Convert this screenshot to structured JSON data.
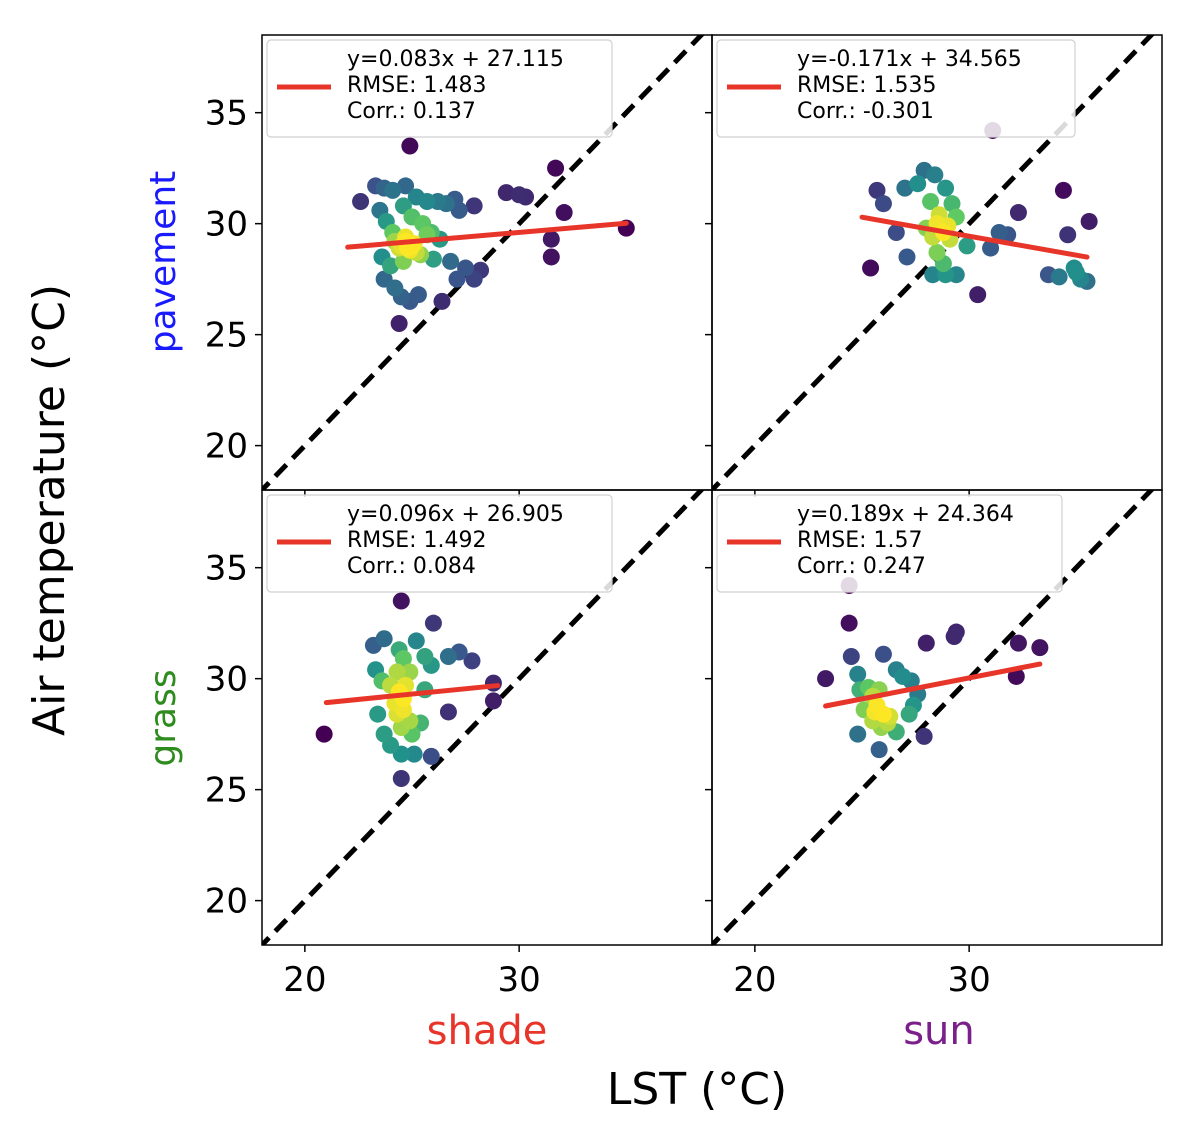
{
  "figure": {
    "xlabel": "LST (°C)",
    "ylabel": "Air temperature (°C)",
    "columns": [
      {
        "label": "shade",
        "color": "#e8352a"
      },
      {
        "label": "sun",
        "color": "#7b1f8a"
      }
    ],
    "rows": [
      {
        "label": "pavement",
        "color": "#1a1aff"
      },
      {
        "label": "grass",
        "color": "#2e8b1e"
      }
    ],
    "fit_line_color": "#e8352a",
    "one_to_one_color": "#000000"
  },
  "chart_data": [
    {
      "type": "scatter",
      "row": "pavement",
      "column": "shade",
      "xlim": [
        18,
        39
      ],
      "ylim": [
        18,
        38.5
      ],
      "xticks": [
        20,
        30
      ],
      "yticks": [
        20,
        25,
        30,
        35
      ],
      "fit": {
        "slope": 0.083,
        "intercept": 27.115,
        "x_range": [
          22,
          35
        ]
      },
      "legend": {
        "line1": "y=0.083x + 27.115",
        "line2": "RMSE: 1.483",
        "line3": "Corr.: 0.137"
      },
      "points": [
        [
          24.9,
          33.5
        ],
        [
          22.6,
          31.0
        ],
        [
          23.3,
          31.7
        ],
        [
          23.7,
          31.6
        ],
        [
          24.1,
          31.5
        ],
        [
          24.7,
          31.7
        ],
        [
          25.2,
          31.2
        ],
        [
          25.7,
          31.0
        ],
        [
          26.2,
          31.0
        ],
        [
          26.6,
          30.9
        ],
        [
          27.0,
          31.1
        ],
        [
          27.2,
          30.6
        ],
        [
          27.9,
          30.8
        ],
        [
          29.4,
          31.4
        ],
        [
          30.0,
          31.3
        ],
        [
          30.3,
          31.2
        ],
        [
          31.7,
          32.5
        ],
        [
          32.1,
          30.5
        ],
        [
          31.5,
          29.3
        ],
        [
          31.5,
          28.5
        ],
        [
          35.0,
          29.8
        ],
        [
          23.5,
          30.6
        ],
        [
          23.8,
          30.1
        ],
        [
          24.1,
          29.6
        ],
        [
          24.6,
          30.8
        ],
        [
          25.0,
          30.3
        ],
        [
          25.5,
          30.0
        ],
        [
          25.9,
          29.6
        ],
        [
          26.3,
          29.3
        ],
        [
          26.8,
          28.3
        ],
        [
          27.1,
          27.5
        ],
        [
          27.5,
          28.0
        ],
        [
          27.9,
          27.5
        ],
        [
          28.2,
          27.9
        ],
        [
          26.4,
          26.5
        ],
        [
          23.7,
          27.5
        ],
        [
          24.2,
          27.1
        ],
        [
          24.5,
          26.7
        ],
        [
          24.9,
          26.5
        ],
        [
          25.3,
          26.8
        ],
        [
          24.4,
          25.5
        ],
        [
          23.6,
          28.5
        ],
        [
          24.0,
          28.1
        ],
        [
          24.4,
          28.9
        ],
        [
          24.7,
          29.4
        ],
        [
          25.1,
          29.1
        ],
        [
          25.4,
          28.6
        ],
        [
          24.6,
          28.3
        ],
        [
          24.2,
          29.2
        ],
        [
          24.9,
          28.8
        ],
        [
          25.7,
          29.5
        ],
        [
          26.0,
          28.4
        ],
        [
          25.0,
          29.0
        ],
        [
          24.8,
          28.9
        ],
        [
          24.5,
          29.0
        ],
        [
          25.2,
          28.7
        ],
        [
          24.7,
          29.2
        ]
      ]
    },
    {
      "type": "scatter",
      "row": "pavement",
      "column": "sun",
      "xlim": [
        18,
        39
      ],
      "ylim": [
        18,
        38.5
      ],
      "xticks": [
        20,
        30
      ],
      "yticks": [
        20,
        25,
        30,
        35
      ],
      "fit": {
        "slope": -0.171,
        "intercept": 34.565,
        "x_range": [
          25,
          35.5
        ]
      },
      "legend": {
        "line1": "y=-0.171x + 34.565",
        "line2": "RMSE: 1.535",
        "line3": "Corr.: -0.301"
      },
      "points": [
        [
          31.1,
          34.2
        ],
        [
          25.4,
          28.0
        ],
        [
          25.7,
          31.5
        ],
        [
          26.0,
          30.9
        ],
        [
          26.6,
          29.6
        ],
        [
          27.1,
          28.5
        ],
        [
          27.6,
          31.8
        ],
        [
          27.9,
          32.4
        ],
        [
          28.4,
          32.2
        ],
        [
          28.9,
          31.6
        ],
        [
          29.2,
          30.9
        ],
        [
          28.2,
          31.0
        ],
        [
          28.6,
          30.4
        ],
        [
          29.0,
          29.9
        ],
        [
          29.4,
          30.3
        ],
        [
          29.9,
          29.0
        ],
        [
          30.4,
          26.8
        ],
        [
          31.0,
          28.9
        ],
        [
          31.4,
          29.6
        ],
        [
          31.8,
          29.5
        ],
        [
          32.3,
          30.5
        ],
        [
          33.7,
          27.7
        ],
        [
          34.2,
          27.6
        ],
        [
          34.4,
          31.5
        ],
        [
          34.6,
          29.5
        ],
        [
          34.9,
          28.0
        ],
        [
          35.2,
          27.5
        ],
        [
          35.5,
          27.4
        ],
        [
          35.6,
          30.1
        ],
        [
          35.0,
          27.8
        ],
        [
          27.0,
          31.6
        ],
        [
          28.5,
          28.7
        ],
        [
          28.8,
          28.2
        ],
        [
          28.3,
          27.7
        ],
        [
          28.9,
          27.7
        ],
        [
          29.4,
          27.7
        ],
        [
          28.3,
          29.4
        ],
        [
          28.0,
          29.8
        ],
        [
          28.5,
          30.0
        ],
        [
          28.8,
          29.6
        ],
        [
          29.1,
          29.3
        ]
      ]
    },
    {
      "type": "scatter",
      "row": "grass",
      "column": "shade",
      "xlim": [
        18,
        39
      ],
      "ylim": [
        18,
        38.5
      ],
      "xticks": [
        20,
        30
      ],
      "yticks": [
        20,
        25,
        30,
        35
      ],
      "fit": {
        "slope": 0.096,
        "intercept": 26.905,
        "x_range": [
          21,
          29
        ]
      },
      "legend": {
        "line1": "y=0.096x + 26.905",
        "line2": "RMSE: 1.492",
        "line3": "Corr.: 0.084"
      },
      "points": [
        [
          24.5,
          33.5
        ],
        [
          26.0,
          32.5
        ],
        [
          20.9,
          27.5
        ],
        [
          23.2,
          31.5
        ],
        [
          23.7,
          31.8
        ],
        [
          24.4,
          31.3
        ],
        [
          25.2,
          31.7
        ],
        [
          25.6,
          31.0
        ],
        [
          26.7,
          31.0
        ],
        [
          27.2,
          31.2
        ],
        [
          27.8,
          30.8
        ],
        [
          28.8,
          29.8
        ],
        [
          28.8,
          29.0
        ],
        [
          26.7,
          28.5
        ],
        [
          23.3,
          30.4
        ],
        [
          23.6,
          29.9
        ],
        [
          23.4,
          28.4
        ],
        [
          23.7,
          27.5
        ],
        [
          24.0,
          27.0
        ],
        [
          24.5,
          26.6
        ],
        [
          25.1,
          26.6
        ],
        [
          25.9,
          26.5
        ],
        [
          24.5,
          25.5
        ],
        [
          25.6,
          29.5
        ],
        [
          25.9,
          30.6
        ],
        [
          25.4,
          28.0
        ],
        [
          25.0,
          27.5
        ],
        [
          24.0,
          29.7
        ],
        [
          24.3,
          30.3
        ],
        [
          24.6,
          30.9
        ],
        [
          24.9,
          30.3
        ],
        [
          24.2,
          28.9
        ],
        [
          24.6,
          28.6
        ],
        [
          24.9,
          28.1
        ],
        [
          24.5,
          27.8
        ],
        [
          24.4,
          29.4
        ],
        [
          24.7,
          29.7
        ],
        [
          24.6,
          29.1
        ],
        [
          24.3,
          28.4
        ]
      ]
    },
    {
      "type": "scatter",
      "row": "grass",
      "column": "sun",
      "xlim": [
        18,
        39
      ],
      "ylim": [
        18,
        38.5
      ],
      "xticks": [
        20,
        30
      ],
      "yticks": [
        20,
        25,
        30,
        35
      ],
      "fit": {
        "slope": 0.189,
        "intercept": 24.364,
        "x_range": [
          23.3,
          33.3
        ]
      },
      "legend": {
        "line1": "y=0.189x + 24.364",
        "line2": "RMSE: 1.57",
        "line3": "Corr.: 0.247"
      },
      "points": [
        [
          24.4,
          34.2
        ],
        [
          24.4,
          32.5
        ],
        [
          24.5,
          31.0
        ],
        [
          23.3,
          30.0
        ],
        [
          24.8,
          30.2
        ],
        [
          25.5,
          29.2
        ],
        [
          26.0,
          31.1
        ],
        [
          26.6,
          30.4
        ],
        [
          26.9,
          30.1
        ],
        [
          27.3,
          29.9
        ],
        [
          27.6,
          29.3
        ],
        [
          28.0,
          31.6
        ],
        [
          29.3,
          31.9
        ],
        [
          29.4,
          32.1
        ],
        [
          32.2,
          30.1
        ],
        [
          32.3,
          31.6
        ],
        [
          33.3,
          31.4
        ],
        [
          24.9,
          29.5
        ],
        [
          25.3,
          29.6
        ],
        [
          25.8,
          29.5
        ],
        [
          27.2,
          28.4
        ],
        [
          27.4,
          28.8
        ],
        [
          26.6,
          27.6
        ],
        [
          27.9,
          27.4
        ],
        [
          25.8,
          26.8
        ],
        [
          24.8,
          27.5
        ],
        [
          25.1,
          28.6
        ],
        [
          25.5,
          28.1
        ],
        [
          25.9,
          27.8
        ],
        [
          26.3,
          28.3
        ],
        [
          25.7,
          28.8
        ],
        [
          26.0,
          28.4
        ],
        [
          26.2,
          28.0
        ],
        [
          25.6,
          28.5
        ]
      ]
    }
  ]
}
